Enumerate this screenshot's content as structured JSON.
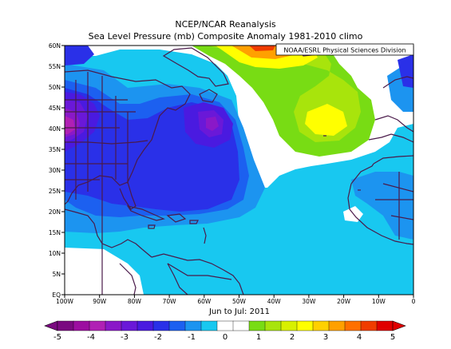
{
  "header": {
    "title": "NCEP/NCAR Reanalysis",
    "subtitle": "Sea Level Pressure (mb) Composite Anomaly 1981-2010 climo"
  },
  "map": {
    "credit": "NOAA/ESRL Physical Sciences Division",
    "period_label": "Jun to Jul: 2011",
    "lon_labels": [
      "100W",
      "90W",
      "80W",
      "70W",
      "60W",
      "50W",
      "40W",
      "30W",
      "20W",
      "10W",
      "0"
    ],
    "lat_labels": [
      "EQ",
      "5N",
      "10N",
      "15N",
      "20N",
      "25N",
      "30N",
      "35N",
      "40N",
      "45N",
      "50N",
      "55N",
      "60N"
    ],
    "extent": {
      "lon": [
        -100,
        0
      ],
      "lat": [
        0,
        60
      ]
    }
  },
  "colorbar": {
    "tick_labels": [
      "-5",
      "-4",
      "-3",
      "-2",
      "-1",
      "0",
      "1",
      "2",
      "3",
      "4",
      "5"
    ],
    "levels": [
      -5,
      -4.5,
      -4,
      -3.5,
      -3,
      -2.5,
      -2,
      -1.5,
      -1,
      -0.5,
      0,
      0.5,
      1,
      1.5,
      2,
      2.5,
      3,
      3.5,
      4,
      4.5,
      5
    ],
    "colors": [
      "#7a0a80",
      "#9c0ea0",
      "#b020b4",
      "#8a18c8",
      "#6a18d8",
      "#4a1ae0",
      "#2a30e8",
      "#1c60f0",
      "#1c94f0",
      "#18c8f0",
      "#ffffff",
      "#ffffff",
      "#78dc14",
      "#a8e40c",
      "#d8f000",
      "#ffff00",
      "#ffd000",
      "#ffa000",
      "#ff7000",
      "#f03c00",
      "#e00000"
    ]
  }
}
